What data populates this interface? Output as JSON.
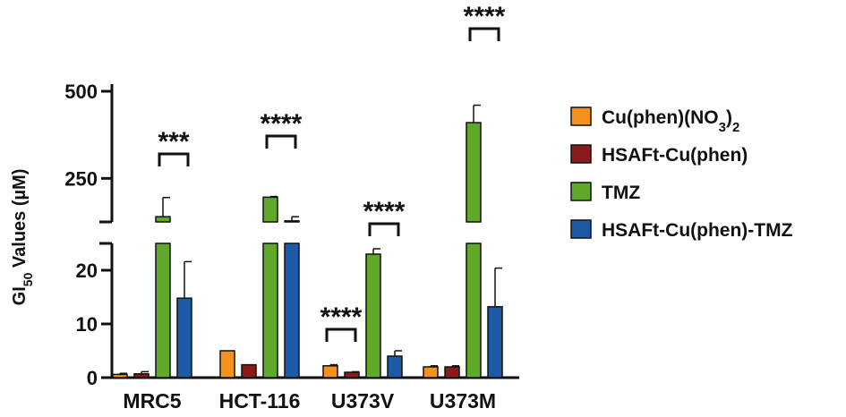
{
  "chart_data": {
    "type": "bar",
    "ylabel_main": "GI",
    "ylabel_sub": "50",
    "ylabel_rest": " Values (µM)",
    "categories": [
      "MRC5",
      "HCT-116",
      "U373V",
      "U373M"
    ],
    "y_axis": {
      "broken": true,
      "lower_range": [
        0,
        25
      ],
      "upper_range": [
        125,
        500
      ],
      "lower_ticks": [
        0,
        10,
        20
      ],
      "upper_ticks": [
        250,
        500
      ]
    },
    "series": [
      {
        "name": "Cu(phen)(NO3)2",
        "name_main": "Cu(phen)(NO",
        "name_sub1": "3",
        "name_mid": ")",
        "name_sub2": "2",
        "color": "#F5921E",
        "values": [
          0.6,
          5.0,
          2.2,
          2.0
        ],
        "errors": [
          0.2,
          0,
          0.2,
          0.2
        ]
      },
      {
        "name": "HSAFt-Cu(phen)",
        "color": "#8B1A1A",
        "values": [
          0.7,
          2.4,
          1.0,
          2.0
        ],
        "errors": [
          0.4,
          0,
          0.1,
          0.2
        ]
      },
      {
        "name": "TMZ",
        "color": "#5FA82A",
        "values": [
          140,
          196,
          23.0,
          410
        ],
        "errors": [
          55,
          2,
          1.0,
          50
        ]
      },
      {
        "name": "HSAFt-Cu(phen)-TMZ",
        "color": "#1F5AA6",
        "values": [
          14.8,
          128,
          4.0,
          13.2
        ],
        "errors": [
          6.8,
          12,
          1.0,
          7.2
        ]
      }
    ],
    "significance": [
      {
        "category": "MRC5",
        "label": "***",
        "between": [
          2,
          3
        ]
      },
      {
        "category": "HCT-116",
        "label": "****",
        "between": [
          2,
          3
        ]
      },
      {
        "category": "U373V",
        "label": "****",
        "between": [
          0,
          1
        ]
      },
      {
        "category": "U373V",
        "label": "****",
        "between": [
          2,
          3
        ]
      },
      {
        "category": "U373M",
        "label": "****",
        "between": [
          2,
          3
        ]
      }
    ],
    "legend": "right"
  }
}
